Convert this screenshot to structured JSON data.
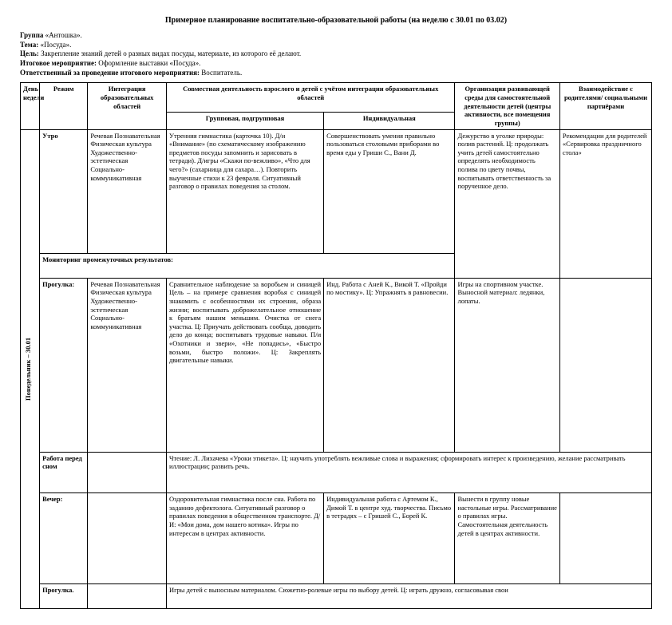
{
  "title": "Примерное планирование воспитательно-образовательной работы (на неделю с 30.01 по 03.02)",
  "meta": {
    "group_label": "Группа",
    "group": "«Антошка».",
    "theme_label": "Тема:",
    "theme": "«Посуда».",
    "goal_label": "Цель:",
    "goal": "Закрепление знаний детей о разных видах посуды, материале, из которого её делают.",
    "event_label": "Итоговое мероприятие:",
    "event": "Оформление выставки «Посуда».",
    "resp_label": "Ответственный за проведение итогового мероприятия:",
    "resp": "Воспитатель."
  },
  "headers": {
    "day": "День недели",
    "regime": "Режим",
    "integration": "Интеграция образовательных областей",
    "joint": "Совместная деятельность взрослого и детей с учётом интеграции образовательных областей",
    "group": "Групповая, подгрупповая",
    "individual": "Индивидуальная",
    "env": "Организация развивающей среды для самостоятельной деятельности детей (центры активности, все помещения группы)",
    "parents": "Взаимодействие с родителями/ социальными партнёрами"
  },
  "day_label": "Понедельник – 30.01",
  "rows": {
    "morning": {
      "regime": "Утро",
      "integration": "Речевая\nПознавательная\nФизическая культура\nХудожественно-эстетическая\nСоциально-коммуникативная",
      "group": "Утренняя гимнастика (карточка 10).\nД/и «Внимание» (по схематическому изображению предметов посуды запомнить и зарисовать в тетради).\nД/игры «Скажи по-вежливо», «Что для чего?» (сахарница для сахара…).\nПовторить выученные стихи к 23 февраля.\nСитуативный разговор о правилах поведения за столом.",
      "individual": "Совершенствовать умения правильно пользоваться столовыми приборами во время еды у Гриши С., Вани Д.",
      "env": "Дежурство в уголке природы: полив растений. Ц: продолжать учить детей самостоятельно определять необходимость полива по цвету почвы, воспитывать ответственность за порученное дело.",
      "parents": "Рекомендации для родителей «Сервировка праздничного стола»"
    },
    "monitoring": "Мониторинг промежуточных результатов:",
    "walk1": {
      "regime": "Прогулка:",
      "integration": "Речевая\nПознавательная\nФизическая культура\nХудожественно-эстетическая\nСоциально-коммуникативная",
      "group": "Сравнительное наблюдение за воробьем и синицей\nЦель – на примере сравнения воробья с синицей знакомить с особенностями их строения, образа жизни; воспитывать доброжелательное отношение к братьям нашим меньшим.\nОчистка от снега участка. Ц: Приучать действовать сообща, доводить дело до конца; воспитывать трудовые навыки.\nП/и «Охотники и звери», «Не попадись», «Быстро возьми, быстро положи». Ц: Закреплять двигательные навыки.",
      "individual": "Инд. Работа с Аней К., Викой Т. «Пройди по мостику». Ц: Упражнять в равновесии.",
      "env": "Игры на спортивном участке.\nВыносной материал: ледянки, лопаты."
    },
    "beforelunch": {
      "regime": "Работа перед сном",
      "content": "Чтение: Л. Лихачева «Уроки этикета». Ц: научить употреблять вежливые слова и выражения; сформировать интерес к произведению, желание рассматривать иллюстрации; развить речь."
    },
    "evening": {
      "regime": "Вечер:",
      "group": "Оздоровительная гимнастика после сна.\nРабота по заданию дефектолога.\nСитуативный разговор о правилах поведения в общественном транспорте.\nД/И: «Мои дома, дом нашего котика».\nИгры по интересам в центрах активности.",
      "individual": "Индивидуальная работа с Артемом К., Димой Т. в центре худ. творчества.\nПисьмо в тетрадях – с Гришей С., Борей К.",
      "env": "Вынести в группу новые настольные игры.\nРассматривание о правилах игры. Самостоятельная деятельность детей в центрах активности."
    },
    "walk2": {
      "regime": "Прогулка.",
      "content": "Игры детей с выносным материалом. Сюжетно-ролевые игры по выбору детей. Ц: играть дружно, согласовывая свои"
    }
  }
}
